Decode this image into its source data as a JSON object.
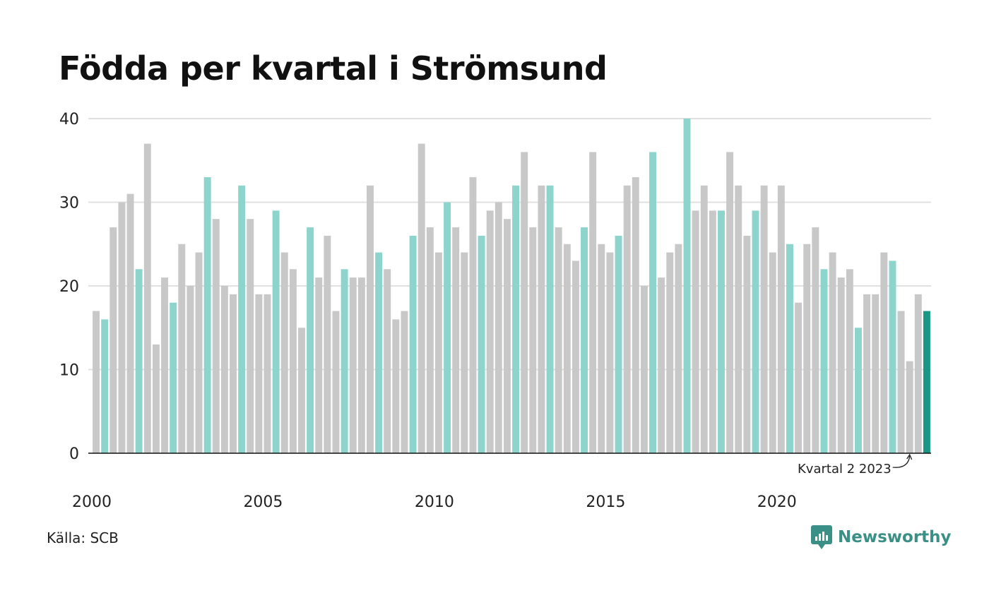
{
  "title": "Födda per kvartal i Strömsund",
  "source": "Källa: SCB",
  "brand": "Newsworthy",
  "colors": {
    "bar": "#c8c8c8",
    "q2_bar": "#8dd4cd",
    "latest_bar": "#1a9685",
    "grid": "#e0e0e0",
    "axis": "#111111",
    "brand": "#3a8f86"
  },
  "chart_data": {
    "type": "bar",
    "ylim": [
      0,
      40
    ],
    "yticks": [
      0,
      10,
      20,
      30,
      40
    ],
    "xtick_labels": [
      "2000",
      "2005",
      "2010",
      "2015",
      "2020"
    ],
    "start_year": 2000,
    "highlight_quarter": 2,
    "annotation": "Kvartal 2 2023",
    "values": [
      17,
      16,
      27,
      30,
      31,
      22,
      37,
      13,
      21,
      18,
      25,
      20,
      24,
      33,
      28,
      20,
      19,
      32,
      28,
      19,
      19,
      29,
      24,
      22,
      15,
      27,
      21,
      26,
      17,
      22,
      21,
      21,
      32,
      24,
      22,
      16,
      17,
      26,
      37,
      27,
      24,
      30,
      27,
      24,
      33,
      26,
      29,
      30,
      28,
      32,
      36,
      27,
      32,
      32,
      27,
      25,
      23,
      27,
      36,
      25,
      24,
      26,
      32,
      33,
      20,
      36,
      21,
      24,
      25,
      40,
      29,
      32,
      29,
      29,
      36,
      32,
      26,
      29,
      32,
      24,
      32,
      25,
      18,
      25,
      27,
      22,
      24,
      21,
      22,
      15,
      19,
      19,
      24,
      23,
      17,
      11,
      19,
      17
    ]
  }
}
